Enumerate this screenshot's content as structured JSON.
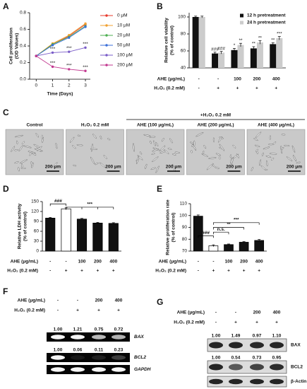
{
  "panel_labels": [
    "A",
    "B",
    "C",
    "D",
    "E",
    "F",
    "G"
  ],
  "chart_data": [
    {
      "type": "line",
      "x": [
        0,
        1,
        2,
        3
      ],
      "xlim": [
        -0.4,
        3.3
      ],
      "xticks": [
        0,
        1,
        2,
        3
      ],
      "ylim": [
        0,
        0.8
      ],
      "yticks": [
        {
          "value": 0,
          "label": "0.0"
        },
        0.2,
        0.4,
        0.6,
        0.8
      ],
      "x_label": "Time (Days)",
      "y_label": [
        "Cell proliferation",
        "(OD Values)"
      ],
      "legend": "right",
      "series": [
        {
          "name": "0 μM",
          "color": "#e8392b",
          "values": [
            0.28,
            0.42,
            0.52,
            0.66
          ]
        },
        {
          "name": "10 μM",
          "color": "#f0a030",
          "values": [
            0.28,
            0.43,
            0.53,
            0.67
          ]
        },
        {
          "name": "20 μM",
          "color": "#4caf50",
          "values": [
            0.28,
            0.42,
            0.51,
            0.64
          ]
        },
        {
          "name": "50 μM",
          "color": "#3b6fd8",
          "values": [
            0.28,
            0.41,
            0.5,
            0.63
          ]
        },
        {
          "name": "100 μM",
          "color": "#7a5cc8",
          "values": [
            0.28,
            0.32,
            0.33,
            0.38
          ]
        },
        {
          "name": "200 μM",
          "color": "#c2378f",
          "values": [
            0.28,
            0.15,
            0.12,
            0.1
          ]
        }
      ],
      "annotations": [
        "***",
        "***",
        "***",
        "***",
        "***",
        "***"
      ]
    },
    {
      "type": "grouped_bar",
      "categories": [
        null,
        null,
        null,
        null,
        null
      ],
      "ylim": [
        40,
        105
      ],
      "yticks": [
        40,
        60,
        80,
        100
      ],
      "y_label": [
        "Relative cell viability",
        "(% of control)"
      ],
      "legend": "top-right",
      "series": [
        {
          "name": "12 h pretreatment",
          "color": "#111111",
          "values": [
            100,
            57,
            61,
            63,
            68
          ],
          "errors": [
            1,
            1.5,
            2,
            2,
            1.5
          ],
          "notes": [
            null,
            "###",
            "*",
            "**",
            "**"
          ]
        },
        {
          "name": "24 h pretreatment",
          "color": "#cccccc",
          "values": [
            100,
            58,
            67,
            70,
            75
          ],
          "errors": [
            1,
            1.5,
            2,
            2,
            2
          ],
          "notes": [
            null,
            "###",
            "**",
            "**",
            "***"
          ]
        }
      ],
      "x_table": [
        {
          "label": "AHE (μg/mL)",
          "cells": [
            "-",
            "-",
            "100",
            "200",
            "400"
          ]
        },
        {
          "label": "H₂O₂ (0.2 mM)",
          "cells": [
            "-",
            "+",
            "+",
            "+",
            "+"
          ]
        }
      ]
    },
    {
      "type": "bar",
      "categories": [
        null,
        null,
        null,
        null,
        null
      ],
      "values": [
        100,
        128,
        97,
        85,
        84
      ],
      "errors": [
        2,
        3,
        2,
        2,
        2
      ],
      "colors": [
        "#111111",
        "#ffffff",
        "#111111",
        "#111111",
        "#111111"
      ],
      "ylim": [
        0,
        150
      ],
      "yticks": [
        0,
        30,
        60,
        90,
        120,
        150
      ],
      "y_label": [
        "Relative LDH activity",
        "(% of control)"
      ],
      "annotations": [
        "###",
        "***"
      ],
      "x_table": [
        {
          "label": "AHE (μg/mL)",
          "cells": [
            "-",
            "-",
            "100",
            "200",
            "400"
          ]
        },
        {
          "label": "H₂O₂ (0.2 mM)",
          "cells": [
            "-",
            "+",
            "+",
            "+",
            "+"
          ]
        }
      ]
    },
    {
      "type": "bar",
      "categories": [
        null,
        null,
        null,
        null,
        null
      ],
      "values": [
        99.5,
        74.5,
        75.5,
        77.5,
        79
      ],
      "errors": [
        1,
        0.8,
        0.5,
        0.5,
        0.8
      ],
      "colors": [
        "#111111",
        "#ffffff",
        "#111111",
        "#111111",
        "#111111"
      ],
      "ylim": [
        70,
        110
      ],
      "yticks": [
        70,
        80,
        90,
        100,
        110
      ],
      "y_label": [
        "Relative proliferation rate",
        "(% of control)"
      ],
      "annotations": [
        "###",
        "n.s.",
        "**",
        "***"
      ],
      "x_table": [
        {
          "label": "AHE (μg/mL)",
          "cells": [
            "-",
            "-",
            "100",
            "200",
            "400"
          ]
        },
        {
          "label": "H₂O₂ (0.2 mM)",
          "cells": [
            "-",
            "+",
            "+",
            "+",
            "+"
          ]
        }
      ]
    }
  ],
  "micrographs": {
    "group_label": "+H₂O₂ 0.2 mM",
    "panels": [
      {
        "label": "Control",
        "scale": "200 μm"
      },
      {
        "label": "H₂O₂ 0.2 mM",
        "scale": "200 μm"
      },
      {
        "label": "AHE (100 μg/mL)",
        "scale": "200 μm"
      },
      {
        "label": "AHE (200 μg/mL)",
        "scale": "200 μm"
      },
      {
        "label": "AHE (400 μg/mL)",
        "scale": "200 μm"
      }
    ]
  },
  "gel": {
    "header": [
      {
        "label": "AHE (μg/mL)",
        "cells": [
          "-",
          "-",
          "200",
          "400"
        ]
      },
      {
        "label": "H₂O₂ (0.2 mM)",
        "cells": [
          "-",
          "+",
          "+",
          "+"
        ]
      }
    ],
    "bands": [
      {
        "name": "BAX",
        "ratios": [
          "1.00",
          "1.21",
          "0.75",
          "0.72"
        ]
      },
      {
        "name": "BCL2",
        "ratios": [
          "1.00",
          "0.06",
          "0.11",
          "0.23"
        ]
      },
      {
        "name": "GAPDH"
      }
    ]
  },
  "blot": {
    "header": [
      {
        "label": "AHE (μg/mL)",
        "cells": [
          "-",
          "-",
          "200",
          "400"
        ]
      },
      {
        "label": "H₂O₂ (0.2 mM)",
        "cells": [
          "-",
          "+",
          "+",
          "+"
        ]
      }
    ],
    "bands": [
      {
        "name": "BAX",
        "ratios": [
          "1.00",
          "1.49",
          "0.97",
          "1.10"
        ]
      },
      {
        "name": "BCL2",
        "ratios": [
          "1.00",
          "0.54",
          "0.73",
          "0.95"
        ]
      },
      {
        "name": "β-Actin"
      }
    ]
  }
}
